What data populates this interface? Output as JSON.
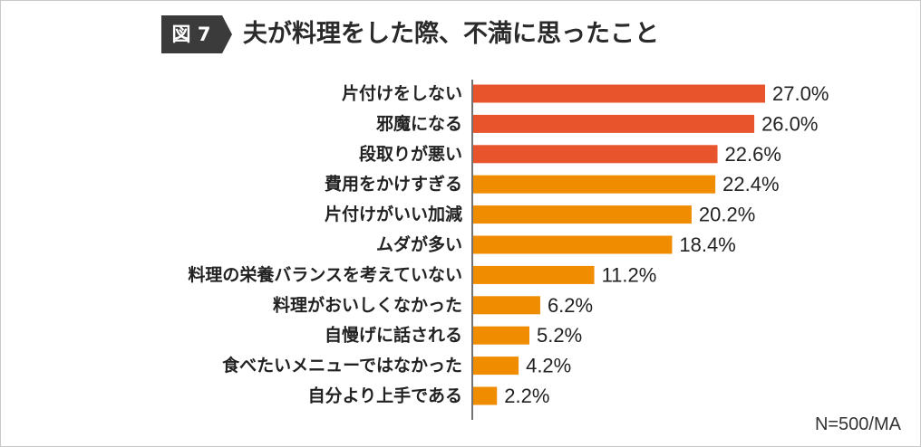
{
  "header": {
    "figure_label": "図 7",
    "title": "夫が料理をした際、不満に思ったこと"
  },
  "note": "N=500/MA",
  "colors": {
    "highlight": "#e8552d",
    "normal": "#f08c00",
    "axis": "#444444"
  },
  "chart_data": {
    "type": "bar",
    "orientation": "horizontal",
    "title": "夫が料理をした際、不満に思ったこと",
    "categories": [
      "片付けをしない",
      "邪魔になる",
      "段取りが悪い",
      "費用をかけすぎる",
      "片付けがいい加減",
      "ムダが多い",
      "料理の栄養バランスを考えていない",
      "料理がおいしくなかった",
      "自慢げに話される",
      "食べたいメニューではなかった",
      "自分より上手である"
    ],
    "values": [
      27.0,
      26.0,
      22.6,
      22.4,
      20.2,
      18.4,
      11.2,
      6.2,
      5.2,
      4.2,
      2.2
    ],
    "value_labels": [
      "27.0%",
      "26.0%",
      "22.6%",
      "22.4%",
      "20.2%",
      "18.4%",
      "11.2%",
      "6.2%",
      "5.2%",
      "4.2%",
      "2.2%"
    ],
    "highlighted_top": 3,
    "xlim": [
      0,
      30
    ],
    "unit": "%",
    "grid": false,
    "legend": "none"
  }
}
